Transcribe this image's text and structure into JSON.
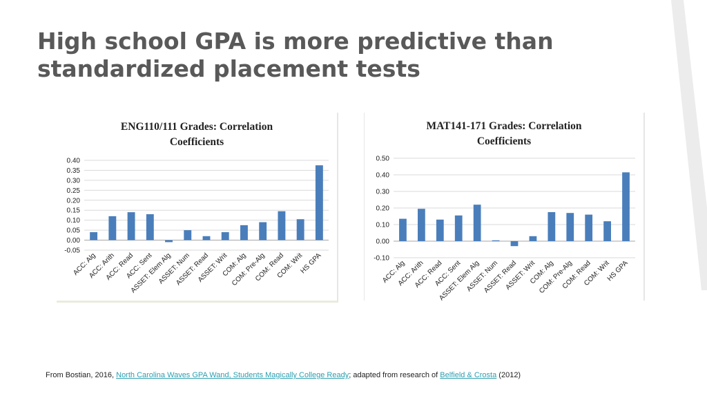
{
  "slide": {
    "title_line1": "High school GPA is more predictive than",
    "title_line2": "standardized placement tests"
  },
  "footer": {
    "prefix": "From Bostian, 2016,",
    "link1": "North Carolina Waves GPA Wand, Students Magically College Ready",
    "middle": "; adapted from research of",
    "link2": "Belfield & Crosta",
    "suffix": "(2012)"
  },
  "colors": {
    "bar": "#4a7ebb",
    "grid": "#d9d9d9",
    "stripe": "#e8e8e8"
  },
  "chart_data": [
    {
      "type": "bar",
      "title_lines": [
        "ENG110/111 Grades: Correlation",
        "Coefficients"
      ],
      "categories": [
        "ACC: Alg",
        "ACC: Arith",
        "ACC: Read",
        "ACC: Sent",
        "ASSET: Elem Alg",
        "ASSET: Num",
        "ASSET: Read",
        "ASSET: Writ",
        "COM: Alg",
        "COM: Pre-Alg",
        "COM: Read",
        "COM: Writ",
        "HS GPA"
      ],
      "values": [
        0.04,
        0.12,
        0.14,
        0.13,
        -0.01,
        0.05,
        0.02,
        0.04,
        0.075,
        0.09,
        0.145,
        0.105,
        0.375
      ],
      "ylim": [
        -0.05,
        0.4
      ],
      "ytick_labels": [
        "-0.05",
        "0.00",
        "0.05",
        "0.10",
        "0.15",
        "0.20",
        "0.25",
        "0.30",
        "0.35",
        "0.40"
      ],
      "grid": true
    },
    {
      "type": "bar",
      "title_lines": [
        "MAT141-171 Grades: Correlation",
        "Coefficients"
      ],
      "categories": [
        "ACC: Alg",
        "ACC: Arith",
        "ACC: Read",
        "ACC: Sent",
        "ASSET: Elem Alg",
        "ASSET: Num",
        "ASSET: Read",
        "ASSET: Writ",
        "COM: Alg",
        "COM: Pre-Alg",
        "COM: Read",
        "COM: Writ",
        "HS GPA"
      ],
      "values": [
        0.135,
        0.195,
        0.13,
        0.155,
        0.22,
        0.005,
        -0.03,
        0.03,
        0.175,
        0.17,
        0.16,
        0.12,
        0.415
      ],
      "ylim": [
        -0.1,
        0.5
      ],
      "ytick_labels": [
        "-0.10",
        "0.00",
        "0.10",
        "0.20",
        "0.30",
        "0.40",
        "0.50"
      ],
      "grid": true
    }
  ]
}
